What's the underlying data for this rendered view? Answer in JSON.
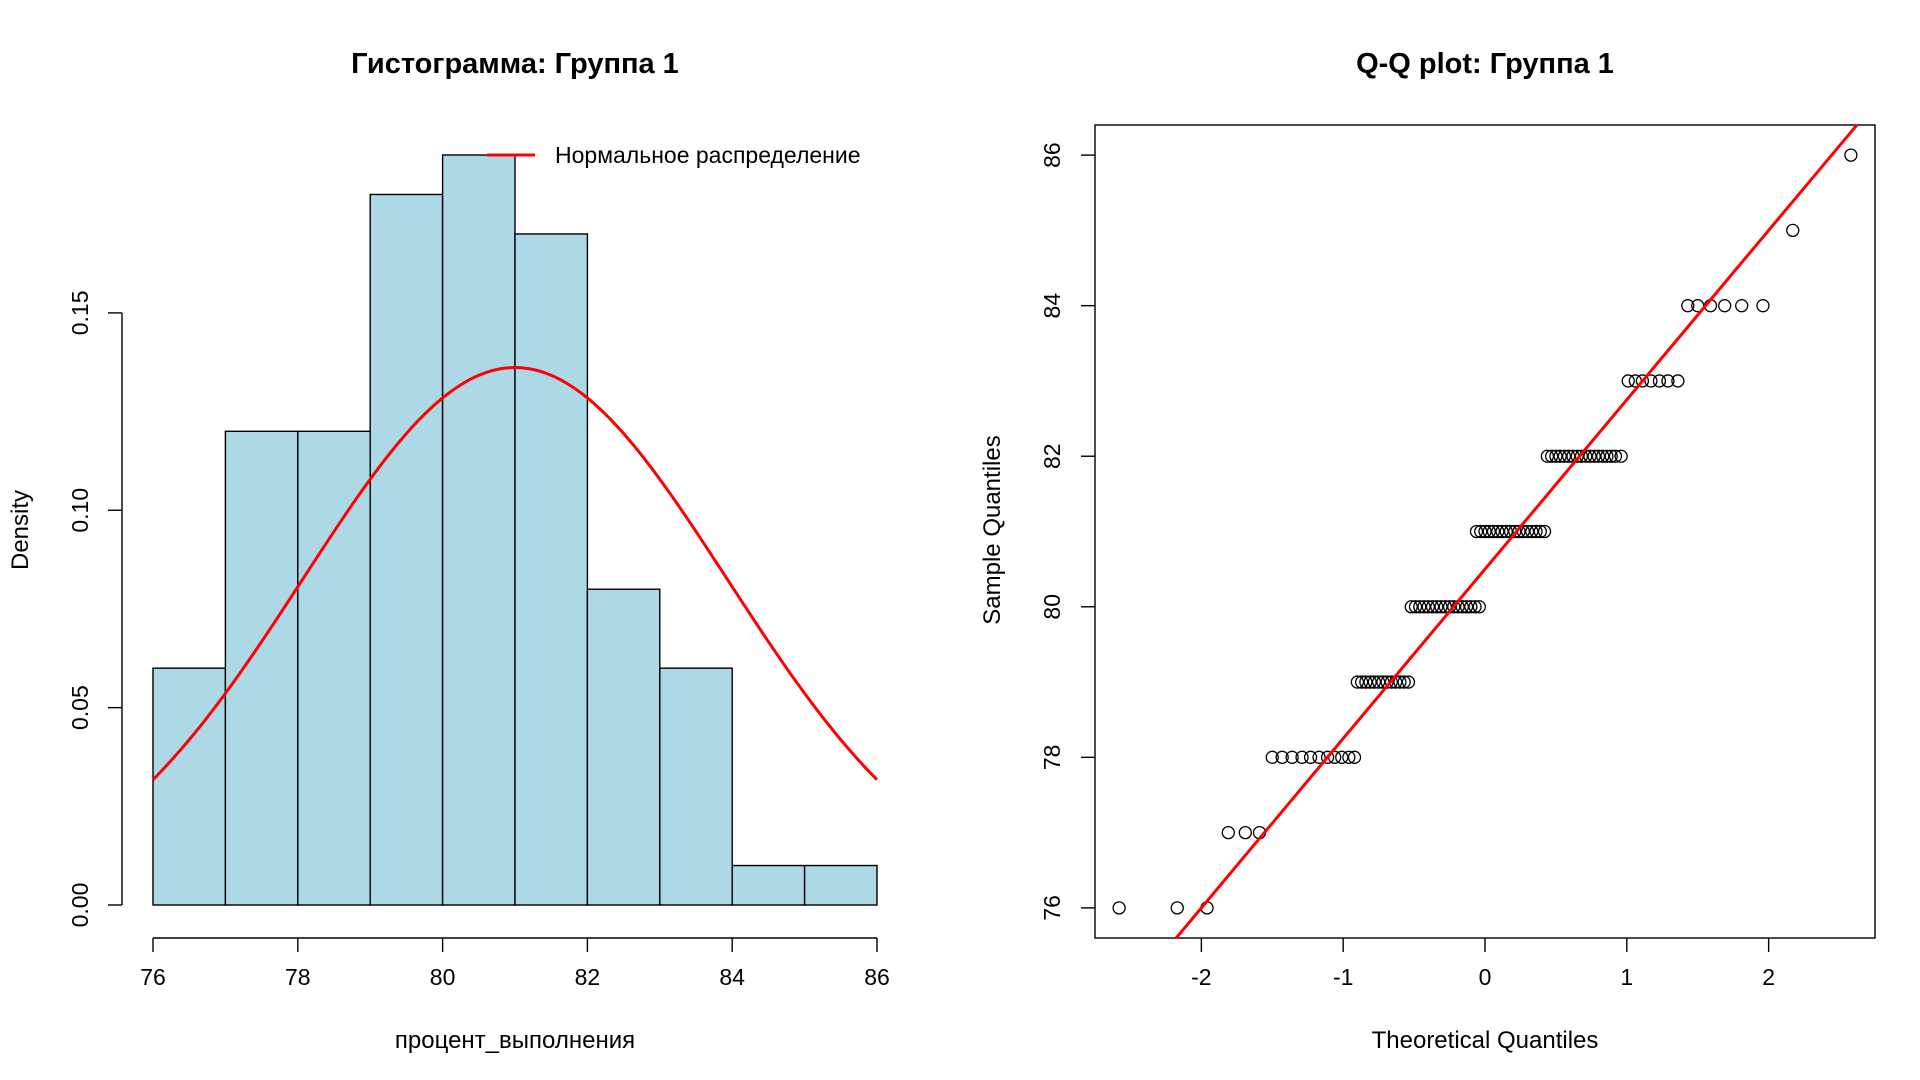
{
  "chart_data": [
    {
      "type": "bar",
      "title": "Гистограмма: Группа 1",
      "xlabel": "процент_выполнения",
      "ylabel": "Density",
      "xlim": [
        76,
        86
      ],
      "ylim": [
        0,
        0.19
      ],
      "x_ticks": [
        76,
        78,
        80,
        82,
        84,
        86
      ],
      "y_ticks": [
        0.0,
        0.05,
        0.1,
        0.15
      ],
      "y_tick_labels": [
        "0.00",
        "0.05",
        "0.10",
        "0.15"
      ],
      "bins": [
        [
          76,
          77
        ],
        [
          77,
          78
        ],
        [
          78,
          79
        ],
        [
          79,
          80
        ],
        [
          80,
          81
        ],
        [
          81,
          82
        ],
        [
          82,
          83
        ],
        [
          83,
          84
        ],
        [
          84,
          85
        ],
        [
          85,
          86
        ]
      ],
      "values": [
        0.06,
        0.12,
        0.12,
        0.18,
        0.19,
        0.17,
        0.08,
        0.06,
        0.01,
        0.01
      ],
      "bar_color": "#add8e6",
      "normal_curve": {
        "mean": 81.0,
        "sd": 2.93,
        "color": "#ff0000"
      },
      "legend": {
        "entries": [
          "Нормальное распределение"
        ],
        "placement": "top-right"
      }
    },
    {
      "type": "scatter",
      "title": "Q-Q plot: Группа 1",
      "xlabel": "Theoretical Quantiles",
      "ylabel": "Sample Quantiles",
      "xlim": [
        -2.75,
        2.75
      ],
      "ylim": [
        75.6,
        86.4
      ],
      "x_ticks": [
        -2,
        -1,
        0,
        1,
        2
      ],
      "y_ticks": [
        76,
        78,
        80,
        82,
        84,
        86
      ],
      "line": {
        "intercept": 80.5,
        "slope": 2.25,
        "color": "#ff0000"
      },
      "groups": [
        {
          "y": 76,
          "x": [
            -2.58,
            -2.17,
            -1.96
          ]
        },
        {
          "y": 77,
          "x": [
            -1.81,
            -1.69,
            -1.59
          ]
        },
        {
          "y": 78,
          "x": [
            -1.5,
            -1.43,
            -1.36,
            -1.29,
            -1.23,
            -1.17,
            -1.11,
            -1.06,
            -1.01,
            -0.96,
            -0.92
          ]
        },
        {
          "y": 79,
          "x": [
            -0.9,
            -0.87,
            -0.84,
            -0.81,
            -0.78,
            -0.75,
            -0.72,
            -0.69,
            -0.66,
            -0.63,
            -0.6,
            -0.57,
            -0.54
          ]
        },
        {
          "y": 80,
          "x": [
            -0.52,
            -0.49,
            -0.46,
            -0.43,
            -0.4,
            -0.37,
            -0.34,
            -0.31,
            -0.28,
            -0.25,
            -0.22,
            -0.19,
            -0.16,
            -0.13,
            -0.1,
            -0.07,
            -0.04
          ]
        },
        {
          "y": 81,
          "x": [
            -0.06,
            -0.03,
            0.0,
            0.03,
            0.06,
            0.09,
            0.12,
            0.15,
            0.18,
            0.21,
            0.24,
            0.27,
            0.3,
            0.33,
            0.36,
            0.39,
            0.42
          ]
        },
        {
          "y": 82,
          "x": [
            0.44,
            0.47,
            0.5,
            0.53,
            0.56,
            0.59,
            0.62,
            0.65,
            0.68,
            0.71,
            0.74,
            0.77,
            0.8,
            0.83,
            0.86,
            0.89,
            0.92,
            0.96
          ]
        },
        {
          "y": 83,
          "x": [
            1.01,
            1.06,
            1.11,
            1.17,
            1.23,
            1.29,
            1.36
          ]
        },
        {
          "y": 84,
          "x": [
            1.43,
            1.5,
            1.59,
            1.69,
            1.81,
            1.96
          ]
        },
        {
          "y": 85,
          "x": [
            2.17
          ]
        },
        {
          "y": 86,
          "x": [
            2.58
          ]
        }
      ]
    }
  ]
}
